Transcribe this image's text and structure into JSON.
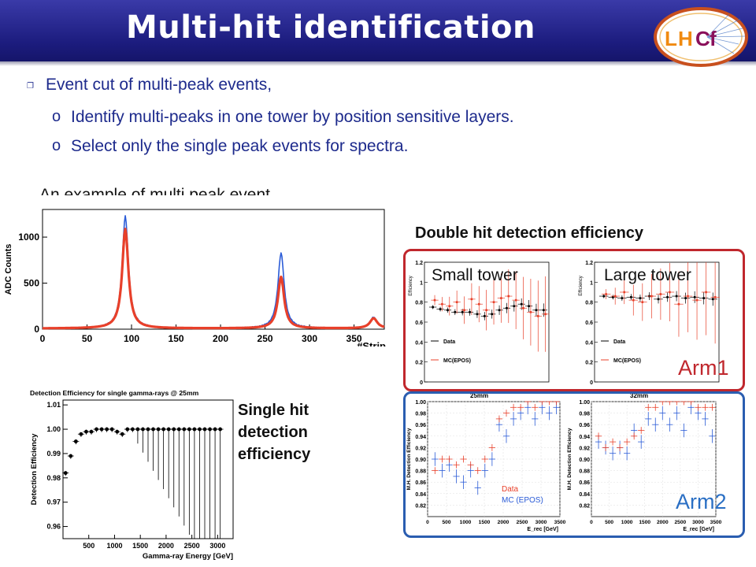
{
  "title": "Multi-hit identification",
  "logo": {
    "text_l": "L",
    "text_h": "H",
    "text_c": "C",
    "text_f": "f"
  },
  "bullets": {
    "main": "Event cut of multi-peak events,",
    "sub1": "Identify multi-peaks in one tower by position sensitive layers.",
    "sub2": "Select only the single peak events for spectra."
  },
  "example_label": "An example of multi peak event",
  "double_hit_label": "Double hit detection efficiency",
  "single_hit_label": [
    "Single hit",
    "detection",
    "efficiency"
  ],
  "arm1": {
    "label": "Arm1",
    "small_tower": "Small tower",
    "large_tower": "Large tower",
    "legend_data": "Data",
    "legend_mc": "MC(EPOS)",
    "ylabel": "Efficiency"
  },
  "arm2": {
    "label": "Arm2",
    "left_title": "25mm",
    "right_title": "32mm",
    "ylabel": "M.H. Detection Efficiency",
    "xlabel": "E_rec [GeV]",
    "legend_data": "Data",
    "legend_mc": "MC (EPOS)"
  },
  "colors": {
    "banner": "#1c1c7e",
    "bullet_text": "#1d2a8c",
    "arm1_frame": "#c0272d",
    "arm2_frame": "#2a5db0",
    "arm1_label": "#c0272d",
    "arm2_label": "#2a6fc4",
    "data_blue": "#2a5bd7",
    "data_red": "#e8402a"
  },
  "chart_data": [
    {
      "type": "line",
      "title": "",
      "xlabel": "#Strip",
      "ylabel": "ADC Counts",
      "xlim": [
        0,
        384
      ],
      "ylim": [
        0,
        1300
      ],
      "xticks": [
        0,
        50,
        100,
        150,
        200,
        250,
        300,
        350
      ],
      "yticks": [
        0,
        500,
        1000
      ],
      "series": [
        {
          "name": "",
          "peaks": [
            [
              93,
              1220
            ],
            [
              268,
              820
            ],
            [
              372,
              120
            ]
          ],
          "color": "#2a5bd7"
        },
        {
          "name": "",
          "peaks": [
            [
              93,
              1080
            ],
            [
              268,
              560
            ],
            [
              372,
              110
            ]
          ],
          "color": "#e8402a"
        }
      ]
    },
    {
      "type": "scatter",
      "title": "Detection Efficiency for single gamma-rays @ 25mm",
      "xlabel": "Gamma-ray Energy [GeV]",
      "ylabel": "Detection Efficiency",
      "xlim": [
        0,
        3300
      ],
      "ylim": [
        0.955,
        1.012
      ],
      "xticks": [
        500,
        1000,
        1500,
        2000,
        2500,
        3000
      ],
      "yticks": [
        0.96,
        0.97,
        0.98,
        0.99,
        1.0,
        1.01
      ],
      "x": [
        50,
        150,
        250,
        350,
        450,
        550,
        650,
        750,
        850,
        950,
        1050,
        1150,
        1250,
        1350,
        1450,
        1550,
        1650,
        1750,
        1850,
        1950,
        2050,
        2150,
        2250,
        2350,
        2450,
        2550,
        2650,
        2750,
        2850,
        2950,
        3050
      ],
      "y": [
        0.982,
        0.989,
        0.995,
        0.998,
        0.999,
        0.999,
        1.0,
        1.0,
        1.0,
        1.0,
        0.999,
        0.998,
        1.0,
        1.0,
        1.0,
        1.0,
        1.0,
        1.0,
        1.0,
        1.0,
        1.0,
        1.0,
        1.0,
        1.0,
        1.0,
        1.0,
        1.0,
        1.0,
        1.0,
        1.0,
        1.0
      ]
    },
    {
      "type": "scatter",
      "title": "Small tower",
      "ylim": [
        0,
        1.2
      ],
      "yticks": [
        0,
        0.2,
        0.4,
        0.6,
        0.8,
        1,
        1.2
      ],
      "series": [
        {
          "name": "Data",
          "values": [
            0.75,
            0.73,
            0.72,
            0.7,
            0.7,
            0.7,
            0.68,
            0.66,
            0.68,
            0.72,
            0.74,
            0.76,
            0.78,
            0.76,
            0.72,
            0.72
          ],
          "color": "#000000"
        },
        {
          "name": "MC(EPOS)",
          "values": [
            0.82,
            0.78,
            0.76,
            0.8,
            0.72,
            0.83,
            0.78,
            0.72,
            0.8,
            0.84,
            0.86,
            0.82,
            0.74,
            0.7,
            0.66,
            0.68
          ],
          "color": "#e8402a"
        }
      ]
    },
    {
      "type": "scatter",
      "title": "Large tower",
      "ylim": [
        0,
        1.2
      ],
      "yticks": [
        0,
        0.2,
        0.4,
        0.6,
        0.8,
        1,
        1.2
      ],
      "series": [
        {
          "name": "Data",
          "values": [
            0.86,
            0.85,
            0.84,
            0.85,
            0.84,
            0.86,
            0.83,
            0.85,
            0.86,
            0.84,
            0.85,
            0.84,
            0.83
          ],
          "color": "#000000"
        },
        {
          "name": "MC(EPOS)",
          "values": [
            0.88,
            0.86,
            0.9,
            0.82,
            0.8,
            0.86,
            0.88,
            0.9,
            0.78,
            0.86,
            0.82,
            0.9,
            0.85
          ],
          "color": "#e8402a"
        }
      ]
    },
    {
      "type": "scatter",
      "title": "25mm",
      "xlabel": "E_rec [GeV]",
      "ylabel": "M.H. Detection Efficiency",
      "xlim": [
        0,
        3500
      ],
      "ylim": [
        0.8,
        1.0
      ],
      "xticks": [
        0,
        500,
        1000,
        1500,
        2000,
        2500,
        3000,
        3500
      ],
      "yticks": [
        0.82,
        0.84,
        0.86,
        0.88,
        0.9,
        0.92,
        0.94,
        0.96,
        0.98,
        1.0
      ],
      "series": [
        {
          "name": "Data",
          "values": [
            0.9,
            0.88,
            0.89,
            0.87,
            0.86,
            0.88,
            0.85,
            0.88,
            0.9,
            0.96,
            0.94,
            0.97,
            0.98,
            0.99,
            0.97,
            0.99,
            0.98,
            0.99
          ],
          "color": "#2a5bd7"
        },
        {
          "name": "MC (EPOS)",
          "values": [
            0.88,
            0.9,
            0.9,
            0.89,
            0.9,
            0.89,
            0.88,
            0.9,
            0.92,
            0.97,
            0.98,
            0.99,
            0.99,
            1.0,
            0.99,
            1.0,
            1.0,
            1.0
          ],
          "color": "#e8402a"
        }
      ]
    },
    {
      "type": "scatter",
      "title": "32mm",
      "xlabel": "E_rec [GeV]",
      "xlim": [
        0,
        3500
      ],
      "ylim": [
        0.8,
        1.0
      ],
      "xticks": [
        0,
        500,
        1000,
        1500,
        2000,
        2500,
        3000,
        3500
      ],
      "yticks": [
        0.82,
        0.84,
        0.86,
        0.88,
        0.9,
        0.92,
        0.94,
        0.96,
        0.98,
        1.0
      ],
      "series": [
        {
          "name": "Data",
          "values": [
            0.93,
            0.92,
            0.91,
            0.92,
            0.91,
            0.95,
            0.93,
            0.97,
            0.96,
            0.98,
            0.96,
            0.98,
            0.95,
            0.99,
            0.98,
            0.97,
            0.94
          ],
          "color": "#2a5bd7"
        },
        {
          "name": "MC (EPOS)",
          "values": [
            0.94,
            0.92,
            0.93,
            0.92,
            0.93,
            0.94,
            0.95,
            0.99,
            0.99,
            1.0,
            1.0,
            1.0,
            1.0,
            1.0,
            0.99,
            0.99,
            0.99
          ],
          "color": "#e8402a"
        }
      ]
    }
  ]
}
